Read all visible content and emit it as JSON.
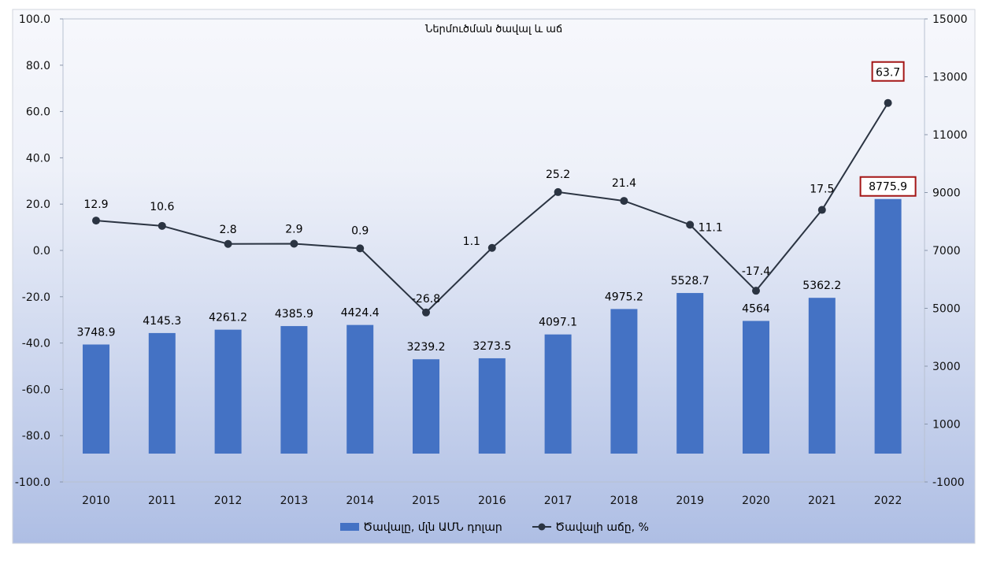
{
  "chart_data": {
    "type": "bar",
    "title": "Ներմուծման ծավալ և աճ",
    "categories": [
      "2010",
      "2011",
      "2012",
      "2013",
      "2014",
      "2015",
      "2016",
      "2017",
      "2018",
      "2019",
      "2020",
      "2021",
      "2022"
    ],
    "series": [
      {
        "name": "Ծավալը, մլն ԱՄՆ դոլար",
        "type": "bar",
        "axis": "right",
        "values": [
          3748.9,
          4145.3,
          4261.2,
          4385.9,
          4424.4,
          3239.2,
          3273.5,
          4097.1,
          4975.2,
          5528.7,
          4564,
          5362.2,
          8775.9
        ],
        "labels": [
          "3748.9",
          "4145.3",
          "4261.2",
          "4385.9",
          "4424.4",
          "3239.2",
          "3273.5",
          "4097.1",
          "4975.2",
          "5528.7",
          "4564",
          "5362.2",
          "8775.9"
        ],
        "color": "#4472C4"
      },
      {
        "name": "Ծավալի աճը, %",
        "type": "line",
        "axis": "left",
        "values": [
          12.9,
          10.6,
          2.8,
          2.9,
          0.9,
          -26.8,
          1.1,
          25.2,
          21.4,
          11.1,
          -17.4,
          17.5,
          63.7
        ],
        "labels": [
          "12.9",
          "10.6",
          "2.8",
          "2.9",
          "0.9",
          "-26.8",
          "1.1",
          "25.2",
          "21.4",
          "11.1",
          "-17.4",
          "17.5",
          "63.7"
        ],
        "color": "#2B3442"
      }
    ],
    "y_left": {
      "min": -100,
      "max": 100,
      "step": 20,
      "tick_labels": [
        "100.0",
        "80.0",
        "60.0",
        "40.0",
        "20.0",
        "0.0",
        "-20.0",
        "-40.0",
        "-60.0",
        "-80.0",
        "-100.0"
      ]
    },
    "y_right": {
      "min": -1000,
      "max": 15000,
      "bar_baseline": -1000,
      "tick_labels": [
        "15000",
        "13000",
        "11000",
        "9000",
        "7000",
        "5000",
        "3000",
        "1000",
        "-1000"
      ]
    },
    "highlighted": {
      "bar_index": 12,
      "line_index": 12,
      "color": "#A31515"
    },
    "legend_position": "bottom-center"
  }
}
